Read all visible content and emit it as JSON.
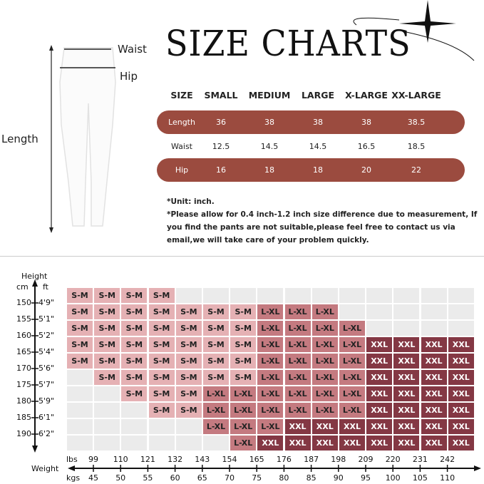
{
  "title": "SIZE CHARTS",
  "diagram": {
    "waist_label": "Waist",
    "hip_label": "Hip",
    "length_label": "Length"
  },
  "size_table": {
    "headers": [
      "SIZE",
      "SMALL",
      "MEDIUM",
      "LARGE",
      "X-LARGE",
      "XX-LARGE"
    ],
    "rows": [
      {
        "label": "Length",
        "values": [
          "36",
          "38",
          "38",
          "38",
          "38.5"
        ]
      },
      {
        "label": "Waist",
        "values": [
          "12.5",
          "14.5",
          "14.5",
          "16.5",
          "18.5"
        ]
      },
      {
        "label": "Hip",
        "values": [
          "16",
          "18",
          "18",
          "20",
          "22"
        ]
      }
    ],
    "band_color": "#9b4b3f"
  },
  "notes": {
    "unit": "*Unit: inch.",
    "line1": "*Please allow for 0.4 inch-1.2 inch size difference due to measurement,   If",
    "line2": "you find the pants are not suitable,please feel free to contact us via",
    "line3": "email,we will take care of your problem quickly."
  },
  "grid": {
    "height_label": "Height",
    "cm_label": "cm",
    "ft_label": "ft",
    "weight_label": "Weight",
    "lbs_label": "lbs",
    "kgs_label": "kgs",
    "cm_ticks": [
      "150",
      "155",
      "160",
      "165",
      "170",
      "175",
      "180",
      "185",
      "190"
    ],
    "ft_ticks": [
      "4'9\"",
      "5'1\"",
      "5'2\"",
      "5'4\"",
      "5'6\"",
      "5'7\"",
      "5'9\"",
      "6'1\"",
      "6'2\""
    ],
    "lbs_ticks": [
      "99",
      "110",
      "121",
      "132",
      "143",
      "154",
      "165",
      "176",
      "187",
      "198",
      "209",
      "220",
      "231",
      "242"
    ],
    "kgs_ticks": [
      "45",
      "50",
      "55",
      "60",
      "65",
      "70",
      "75",
      "80",
      "85",
      "90",
      "95",
      "100",
      "105",
      "110"
    ],
    "size_codes": {
      "S": "S-M",
      "L": "L-XL",
      "X": "XXL"
    },
    "colors": {
      "S-M": "#e5b1b4",
      "L-XL": "#c47a80",
      "XXL": "#843844",
      "empty": "#ebebeb"
    },
    "rows": [
      "SSSS...........",
      "SSSSSSSLLL.....",
      "SSSSSSSLLLL....",
      "SSSSSSSLLLLXXXX",
      "SSSSSSSLLLLXXXX",
      ".SSSSSSLLLLXXXX",
      "..SSSLLLLLLXXXX",
      "...SSLLLLLLXXXX",
      ".....LLLXXXXXXX",
      "......LXXXXXXXX"
    ]
  }
}
